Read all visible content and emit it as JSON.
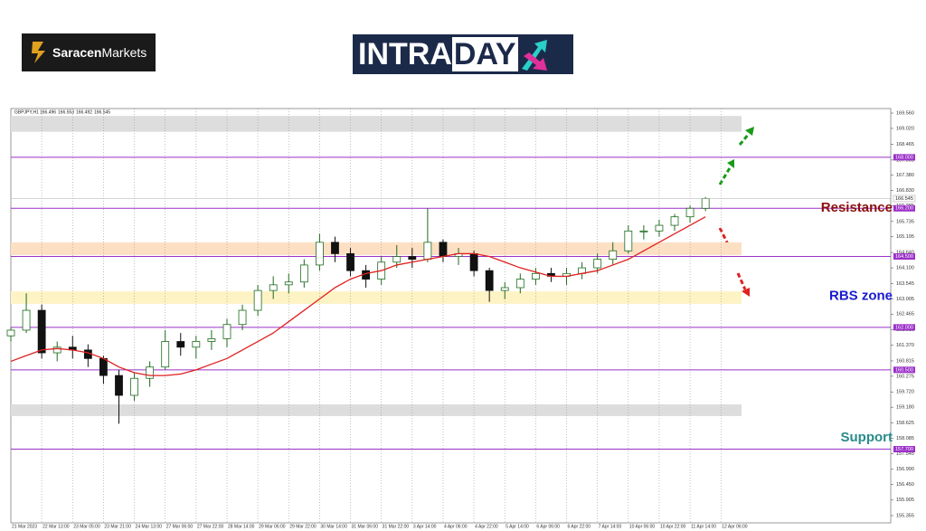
{
  "header": {
    "brand_bold": "Saracen",
    "brand_light": "Markets",
    "badge_left": "INTRA",
    "badge_right": "DAY"
  },
  "chart_data": {
    "type": "candlestick",
    "symbol": "GBPJPY,H1",
    "quote": [
      166.496,
      166.553,
      166.492,
      166.545
    ],
    "xlim": [
      0,
      57
    ],
    "ylim": [
      155.1,
      169.72
    ],
    "xticks": [
      {
        "value": 0,
        "label": "21 Mar 2023"
      },
      {
        "value": 2,
        "label": "22 Mar 13:00"
      },
      {
        "value": 4,
        "label": "23 Mar 05:00"
      },
      {
        "value": 6,
        "label": "23 Mar 21:00"
      },
      {
        "value": 8,
        "label": "24 Mar 13:00"
      },
      {
        "value": 10,
        "label": "27 Mar 06:00"
      },
      {
        "value": 12,
        "label": "27 Mar 22:00"
      },
      {
        "value": 14,
        "label": "28 Mar 14:00"
      },
      {
        "value": 16,
        "label": "29 Mar 06:00"
      },
      {
        "value": 18,
        "label": "29 Mar 22:00"
      },
      {
        "value": 20,
        "label": "30 Mar 14:00"
      },
      {
        "value": 22,
        "label": "31 Mar 06:00"
      },
      {
        "value": 24,
        "label": "31 Mar 22:00"
      },
      {
        "value": 26,
        "label": "3 Apr 14:00"
      },
      {
        "value": 28,
        "label": "4 Apr 06:00"
      },
      {
        "value": 30,
        "label": "4 Apr 22:00"
      },
      {
        "value": 32,
        "label": "5 Apr 14:00"
      },
      {
        "value": 34,
        "label": "6 Apr 06:00"
      },
      {
        "value": 36,
        "label": "6 Apr 22:00"
      },
      {
        "value": 38,
        "label": "7 Apr 14:00"
      },
      {
        "value": 40,
        "label": "10 Apr 06:00"
      },
      {
        "value": 42,
        "label": "10 Apr 22:00"
      },
      {
        "value": 44,
        "label": "11 Apr 14:00"
      },
      {
        "value": 46,
        "label": "12 Apr 06:00"
      }
    ],
    "yticks": [
      {
        "value": 169.56,
        "label": "169.560"
      },
      {
        "value": 169.02,
        "label": "169.020"
      },
      168.465,
      167.905,
      {
        "value": 167.38,
        "label": "167.380"
      },
      {
        "value": 166.83,
        "label": "166.830"
      },
      166.285,
      165.735,
      165.195,
      {
        "value": 164.64,
        "label": "164.640"
      },
      {
        "value": 164.1,
        "label": "164.100"
      },
      163.545,
      163.005,
      162.465,
      {
        "value": 161.91,
        "label": "161.910"
      },
      {
        "value": 161.37,
        "label": "161.370"
      },
      160.815,
      160.275,
      {
        "value": 159.72,
        "label": "159.720"
      },
      {
        "value": 159.18,
        "label": "159.180"
      },
      158.625,
      158.085,
      157.545,
      {
        "value": 156.99,
        "label": "156.990"
      },
      {
        "value": 156.45,
        "label": "156.450"
      },
      155.905,
      155.355
    ],
    "grid": "x",
    "up_color": "#1d6b1d",
    "down_color": "#111111",
    "open": [
      161.7,
      161.9,
      162.6,
      161.1,
      161.3,
      161.2,
      160.9,
      160.3,
      159.6,
      160.2,
      160.6,
      161.5,
      161.3,
      161.5,
      161.6,
      162.1,
      162.6,
      163.3,
      163.5,
      163.6,
      164.2,
      165.0,
      164.6,
      164.0,
      163.7,
      164.3,
      164.5,
      164.4,
      165.0,
      164.5,
      164.6,
      164.0,
      163.3,
      163.4,
      163.7,
      163.9,
      163.8,
      163.9,
      164.1,
      164.4,
      164.7,
      165.4,
      165.4,
      165.6,
      165.9,
      166.2
    ],
    "high": [
      162.0,
      163.2,
      162.8,
      161.5,
      161.7,
      161.4,
      161.0,
      160.5,
      160.4,
      160.8,
      161.9,
      161.8,
      161.7,
      161.9,
      162.3,
      162.8,
      163.5,
      163.8,
      163.9,
      164.4,
      165.3,
      165.2,
      164.8,
      164.2,
      164.5,
      164.9,
      164.8,
      166.2,
      165.1,
      164.8,
      164.7,
      164.1,
      163.6,
      163.9,
      164.1,
      164.1,
      164.1,
      164.3,
      164.6,
      165.0,
      165.6,
      165.6,
      165.8,
      166.0,
      166.3,
      166.6
    ],
    "low": [
      161.5,
      161.8,
      160.9,
      160.8,
      160.9,
      160.6,
      160.0,
      158.6,
      159.4,
      159.9,
      160.5,
      161.0,
      160.9,
      161.2,
      161.3,
      161.9,
      162.4,
      163.0,
      163.2,
      163.4,
      164.0,
      164.3,
      163.8,
      163.4,
      163.5,
      164.1,
      164.1,
      164.3,
      164.3,
      164.2,
      163.8,
      162.9,
      163.0,
      163.2,
      163.5,
      163.6,
      163.5,
      163.7,
      163.9,
      164.2,
      164.6,
      165.1,
      165.2,
      165.4,
      165.7,
      166.1
    ],
    "close": [
      161.9,
      162.6,
      161.1,
      161.3,
      161.2,
      160.9,
      160.3,
      159.6,
      160.2,
      160.6,
      161.5,
      161.3,
      161.5,
      161.6,
      162.1,
      162.6,
      163.3,
      163.5,
      163.6,
      164.2,
      165.0,
      164.6,
      164.0,
      163.7,
      164.3,
      164.5,
      164.4,
      165.0,
      164.5,
      164.6,
      164.0,
      163.3,
      163.4,
      163.7,
      163.9,
      163.8,
      163.9,
      164.1,
      164.4,
      164.7,
      165.4,
      165.4,
      165.6,
      165.9,
      166.2,
      166.545
    ],
    "ma": {
      "color": "#e02020",
      "values": [
        160.8,
        161.0,
        161.2,
        161.25,
        161.2,
        161.1,
        160.9,
        160.6,
        160.4,
        160.3,
        160.3,
        160.35,
        160.5,
        160.7,
        160.9,
        161.2,
        161.5,
        161.8,
        162.2,
        162.6,
        163.0,
        163.4,
        163.7,
        163.9,
        164.0,
        164.2,
        164.3,
        164.4,
        164.5,
        164.6,
        164.6,
        164.5,
        164.3,
        164.1,
        163.95,
        163.8,
        163.8,
        163.9,
        164.0,
        164.2,
        164.4,
        164.7,
        165.0,
        165.3,
        165.6,
        165.9
      ]
    },
    "levels": {
      "color": "#9b30c8",
      "values": [
        {
          "value": 168,
          "label": "168.000"
        },
        {
          "value": 166.2,
          "label": "166.200"
        },
        {
          "value": 164.5,
          "label": "164.500"
        },
        {
          "value": 162,
          "label": "162.000"
        },
        {
          "value": 160.5,
          "label": "160.500"
        },
        {
          "value": 157.7,
          "label": "157.700"
        }
      ]
    },
    "zones": [
      {
        "from": 169.46,
        "to": 168.9,
        "color": "#dddddd"
      },
      {
        "from": 165.0,
        "to": 164.55,
        "color": "#fde0c4"
      },
      {
        "from": 163.27,
        "to": 162.83,
        "color": "#fdf3c4"
      },
      {
        "from": 159.28,
        "to": 158.87,
        "color": "#dddddd"
      }
    ],
    "annotations": [
      {
        "text": "Resistance",
        "color": "#8b1010",
        "y": 166.2
      },
      {
        "text": "RBS zone",
        "color": "#1a1ad0",
        "y": 163.1
      },
      {
        "text": "Support",
        "color": "#2a8a8a",
        "y": 158.1
      }
    ]
  }
}
